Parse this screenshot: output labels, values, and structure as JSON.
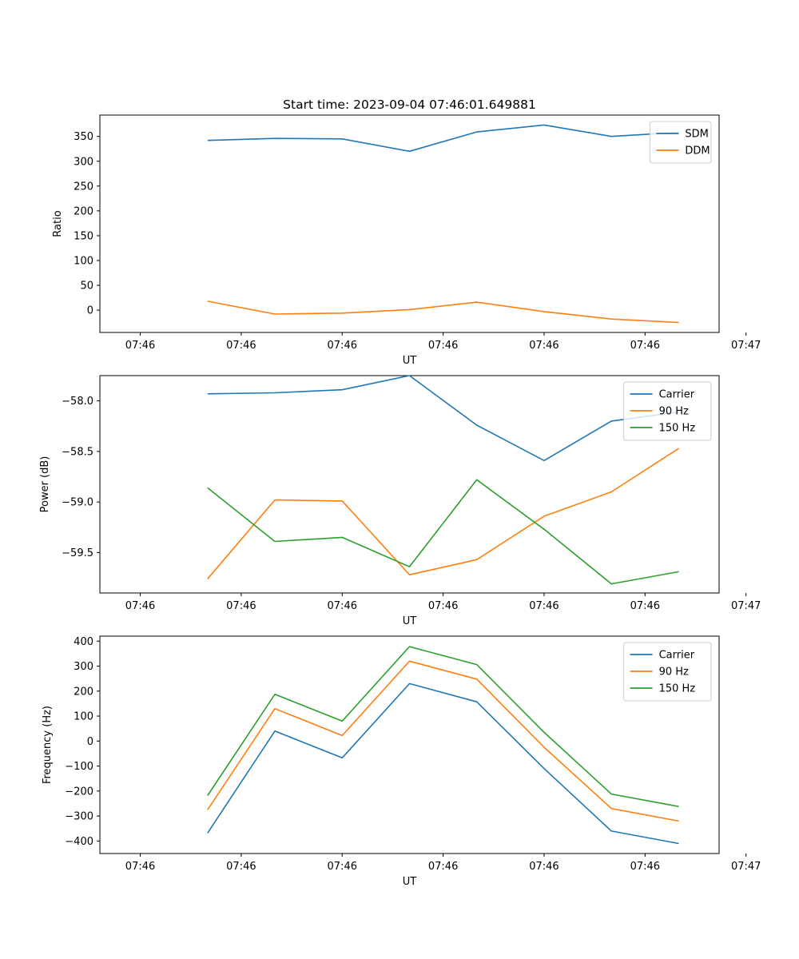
{
  "figure_title": "Start time: 2023-09-04 07:46:01.649881",
  "chart_data": [
    {
      "type": "line",
      "title": "Start time: 2023-09-04 07:46:01.649881",
      "xlabel": "UT",
      "ylabel": "Ratio",
      "xlim": [
        -0.6,
        8.6
      ],
      "ylim": [
        -45,
        393
      ],
      "x": [
        1,
        2,
        3,
        4,
        5,
        6,
        7,
        8
      ],
      "xticks": [
        0,
        1.5,
        3,
        4.5,
        6,
        7.5,
        9
      ],
      "xtick_labels": [
        "07:46",
        "07:46",
        "07:46",
        "07:46",
        "07:46",
        "07:46",
        "07:47"
      ],
      "yticks": [
        0,
        50,
        100,
        150,
        200,
        250,
        300,
        350
      ],
      "ytick_labels": [
        "0",
        "50",
        "100",
        "150",
        "200",
        "250",
        "300",
        "350"
      ],
      "legend_position": "top-right",
      "series": [
        {
          "name": "SDM",
          "color": "#1f77b4",
          "values": [
            342,
            346,
            345,
            320,
            359,
            373,
            350,
            358
          ]
        },
        {
          "name": "DDM",
          "color": "#ff7f0e",
          "values": [
            18,
            -8,
            -6,
            1,
            16,
            -3,
            -18,
            -25
          ]
        }
      ]
    },
    {
      "type": "line",
      "title": "",
      "xlabel": "UT",
      "ylabel": "Power (dB)",
      "xlim": [
        -0.6,
        8.6
      ],
      "ylim": [
        -59.9,
        -57.75
      ],
      "x": [
        1,
        2,
        3,
        4,
        5,
        6,
        7,
        8
      ],
      "xticks": [
        0,
        1.5,
        3,
        4.5,
        6,
        7.5,
        9
      ],
      "xtick_labels": [
        "07:46",
        "07:46",
        "07:46",
        "07:46",
        "07:46",
        "07:46",
        "07:47"
      ],
      "yticks": [
        -59.5,
        -59.0,
        -58.5,
        -58.0
      ],
      "ytick_labels": [
        "−59.5",
        "−59.0",
        "−58.5",
        "−58.0"
      ],
      "legend_position": "top-right",
      "series": [
        {
          "name": "Carrier",
          "color": "#1f77b4",
          "values": [
            -57.93,
            -57.92,
            -57.89,
            -57.75,
            -58.24,
            -58.59,
            -58.2,
            -58.11
          ]
        },
        {
          "name": "90 Hz",
          "color": "#ff7f0e",
          "values": [
            -59.76,
            -58.98,
            -58.99,
            -59.72,
            -59.57,
            -59.14,
            -58.9,
            -58.47
          ]
        },
        {
          "name": "150 Hz",
          "color": "#2ca02c",
          "values": [
            -58.86,
            -59.39,
            -59.35,
            -59.64,
            -58.78,
            -59.27,
            -59.81,
            -59.69
          ]
        }
      ]
    },
    {
      "type": "line",
      "title": "",
      "xlabel": "UT",
      "ylabel": "Frequency (Hz)",
      "xlim": [
        -0.6,
        8.6
      ],
      "ylim": [
        -450,
        420
      ],
      "x": [
        1,
        2,
        3,
        4,
        5,
        6,
        7,
        8
      ],
      "xticks": [
        0,
        1.5,
        3,
        4.5,
        6,
        7.5,
        9
      ],
      "xtick_labels": [
        "07:46",
        "07:46",
        "07:46",
        "07:46",
        "07:46",
        "07:46",
        "07:47"
      ],
      "yticks": [
        -400,
        -300,
        -200,
        -100,
        0,
        100,
        200,
        300,
        400
      ],
      "ytick_labels": [
        "−400",
        "−300",
        "−200",
        "−100",
        "0",
        "100",
        "200",
        "300",
        "400"
      ],
      "legend_position": "top-right",
      "series": [
        {
          "name": "Carrier",
          "color": "#1f77b4",
          "values": [
            -368,
            40,
            -67,
            230,
            157,
            -110,
            -360,
            -410
          ]
        },
        {
          "name": "90 Hz",
          "color": "#ff7f0e",
          "values": [
            -275,
            130,
            22,
            320,
            248,
            -25,
            -270,
            -320
          ]
        },
        {
          "name": "150 Hz",
          "color": "#2ca02c",
          "values": [
            -218,
            187,
            80,
            378,
            306,
            35,
            -212,
            -262
          ]
        }
      ]
    }
  ]
}
